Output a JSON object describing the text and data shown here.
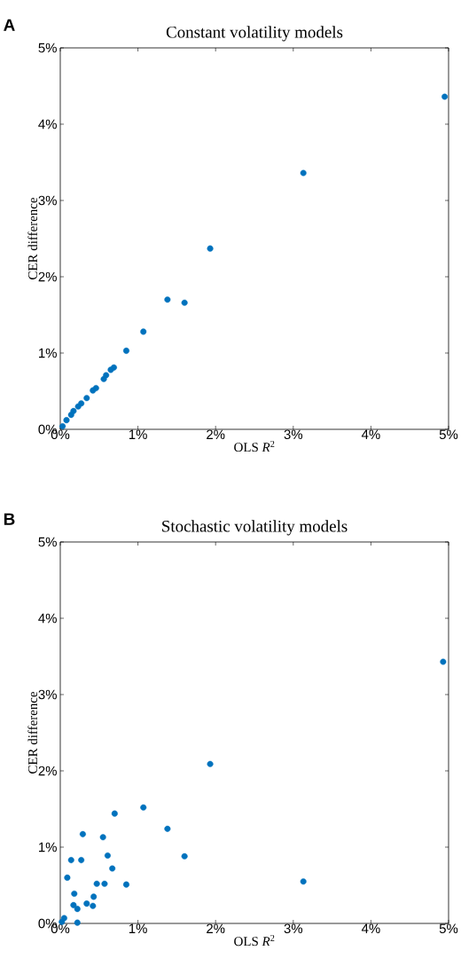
{
  "chart_data": [
    {
      "type": "scatter",
      "title": "Constant volatility models",
      "xlabel": "OLS *R*$^{2}$",
      "ylabel": "CER difference",
      "annotations": [
        "A"
      ],
      "x": [
        4.95,
        3.13,
        1.93,
        1.38,
        1.6,
        1.07,
        0.85,
        0.69,
        0.65,
        0.59,
        0.56,
        0.46,
        0.42,
        0.34,
        0.27,
        0.23,
        0.17,
        0.14,
        0.08,
        0.03
      ],
      "values": [
        4.36,
        3.36,
        2.37,
        1.7,
        1.66,
        1.28,
        1.03,
        0.81,
        0.78,
        0.71,
        0.66,
        0.54,
        0.51,
        0.41,
        0.34,
        0.3,
        0.24,
        0.19,
        0.12,
        0.04
      ],
      "color": "#0072bd",
      "marker": "circle",
      "grid": false,
      "xlim": [
        0,
        5
      ],
      "ylim": [
        0,
        5
      ],
      "xticks": [
        {
          "value": 0,
          "label": "0%"
        },
        {
          "value": 1,
          "label": "1%"
        },
        {
          "value": 2,
          "label": "2%"
        },
        {
          "value": 3,
          "label": "3%"
        },
        {
          "value": 4,
          "label": "4%"
        },
        {
          "value": 5,
          "label": "5%"
        }
      ],
      "yticks": [
        {
          "value": 0,
          "label": "0%"
        },
        {
          "value": 1,
          "label": "1%"
        },
        {
          "value": 2,
          "label": "2%"
        },
        {
          "value": 3,
          "label": "3%"
        },
        {
          "value": 4,
          "label": "4%"
        },
        {
          "value": 5,
          "label": "5%"
        }
      ]
    },
    {
      "type": "scatter",
      "title": "Stochastic volatility models",
      "xlabel": "OLS *R*$^{2}$",
      "ylabel": "CER difference",
      "annotations": [
        "B"
      ],
      "x": [
        4.93,
        3.13,
        1.93,
        1.6,
        1.38,
        1.07,
        0.7,
        0.29,
        0.55,
        0.61,
        0.14,
        0.27,
        0.67,
        0.09,
        0.47,
        0.57,
        0.85,
        0.18,
        0.43,
        0.34,
        0.42,
        0.17,
        0.22,
        0.05,
        0.02,
        0.22
      ],
      "values": [
        3.43,
        0.55,
        2.09,
        0.88,
        1.24,
        1.52,
        1.44,
        1.17,
        1.13,
        0.89,
        0.83,
        0.83,
        0.72,
        0.6,
        0.52,
        0.52,
        0.51,
        0.39,
        0.35,
        0.26,
        0.23,
        0.24,
        0.19,
        0.07,
        0.02,
        0.01
      ],
      "color": "#0072bd",
      "marker": "circle",
      "grid": false,
      "xlim": [
        0,
        5
      ],
      "ylim": [
        0,
        5
      ],
      "xticks": [
        {
          "value": 0,
          "label": "0%"
        },
        {
          "value": 1,
          "label": "1%"
        },
        {
          "value": 2,
          "label": "2%"
        },
        {
          "value": 3,
          "label": "3%"
        },
        {
          "value": 4,
          "label": "4%"
        },
        {
          "value": 5,
          "label": "5%"
        }
      ],
      "yticks": [
        {
          "value": 0,
          "label": "0%"
        },
        {
          "value": 1,
          "label": "1%"
        },
        {
          "value": 2,
          "label": "2%"
        },
        {
          "value": 3,
          "label": "3%"
        },
        {
          "value": 4,
          "label": "4%"
        },
        {
          "value": 5,
          "label": "5%"
        }
      ]
    }
  ]
}
